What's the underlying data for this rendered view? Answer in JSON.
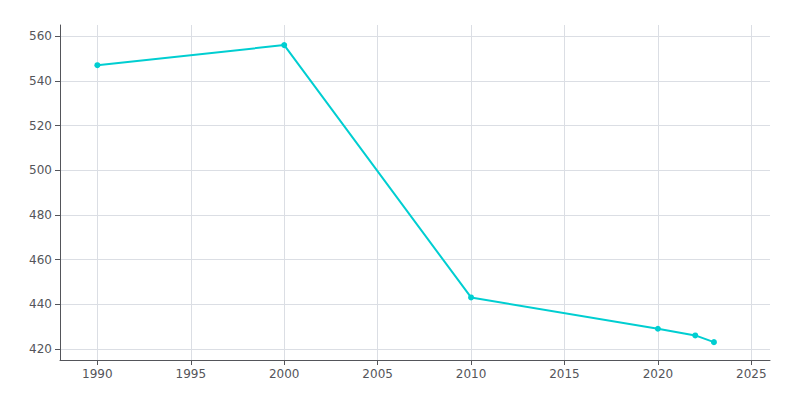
{
  "chart_data": {
    "type": "line",
    "x": [
      1990,
      2000,
      2010,
      2020,
      2022,
      2023
    ],
    "values": [
      547,
      556,
      443,
      429,
      426,
      423
    ],
    "color": "#00CED1",
    "marker": "circle",
    "xlim": [
      1988,
      2026
    ],
    "xticks": [
      1990,
      1995,
      2000,
      2005,
      2010,
      2015,
      2020,
      2025
    ],
    "ylim": [
      415,
      565
    ],
    "yticks": [
      420,
      440,
      460,
      480,
      500,
      520,
      540,
      560
    ],
    "grid": true
  }
}
